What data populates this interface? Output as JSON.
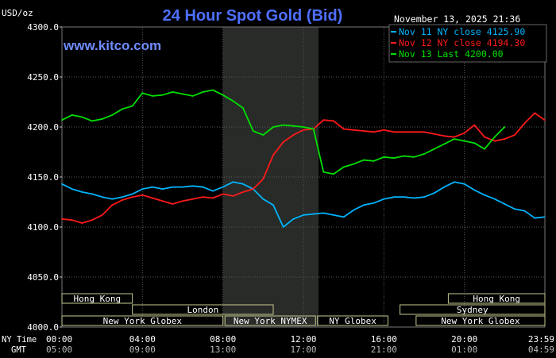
{
  "chart_data": {
    "type": "line",
    "title": "24 Hour Spot Gold (Bid)",
    "ylabel": "USD/oz",
    "watermark": "www.kitco.com",
    "timestamp": "November 13, 2025 21:36",
    "ylim": [
      4000,
      4300
    ],
    "yticks": [
      4300,
      4250,
      4200,
      4150,
      4100,
      4050,
      4000
    ],
    "ytick_labels": [
      "4300.0",
      "4250.0",
      "4200.0",
      "4150.0",
      "4100.0",
      "4050.0",
      "4000.0"
    ],
    "xlim": [
      0,
      24
    ],
    "xticks": [
      0,
      4,
      8,
      12,
      16,
      20,
      24
    ],
    "ny_time_label": "NY Time",
    "gmt_label": "GMT",
    "ny_tick_labels": [
      "00:00",
      "04:00",
      "08:00",
      "12:00",
      "16:00",
      "20:00",
      "23:59"
    ],
    "gmt_tick_labels": [
      "05:00",
      "09:00",
      "13:00",
      "17:00",
      "21:00",
      "01:00",
      "04:59"
    ],
    "shaded_region": [
      8,
      12.75
    ],
    "grid": true,
    "legend_placement": "top-right",
    "series": [
      {
        "name": "Nov 11 NY close 4125.90",
        "color": "#00b4ff",
        "x": [
          0,
          0.5,
          1,
          1.5,
          2,
          2.5,
          3,
          3.5,
          4,
          4.5,
          5,
          5.5,
          6,
          6.5,
          7,
          7.5,
          8,
          8.5,
          9,
          9.5,
          10,
          10.5,
          11,
          11.5,
          12,
          12.5,
          13,
          13.5,
          14,
          14.5,
          15,
          15.5,
          16,
          16.5,
          17,
          17.5,
          18,
          18.5,
          19,
          19.5,
          20,
          20.5,
          21,
          21.5,
          22,
          22.5,
          23,
          23.5,
          23.98
        ],
        "y": [
          4143,
          4138,
          4135,
          4133,
          4130,
          4128,
          4130,
          4133,
          4138,
          4140,
          4138,
          4140,
          4140,
          4141,
          4140,
          4136,
          4140,
          4145,
          4143,
          4138,
          4128,
          4122,
          4100,
          4108,
          4112,
          4113,
          4114,
          4112,
          4110,
          4117,
          4122,
          4124,
          4128,
          4130,
          4130,
          4129,
          4130,
          4134,
          4140,
          4145,
          4143,
          4137,
          4132,
          4128,
          4123,
          4118,
          4116,
          4109,
          4110
        ]
      },
      {
        "name": "Nov 12 NY close 4194.30",
        "color": "#ff1a1a",
        "x": [
          0,
          0.5,
          1,
          1.5,
          2,
          2.5,
          3,
          3.5,
          4,
          4.5,
          5,
          5.5,
          6,
          6.5,
          7,
          7.5,
          8,
          8.5,
          9,
          9.5,
          10,
          10.5,
          11,
          11.5,
          12,
          12.5,
          13,
          13.5,
          14,
          14.5,
          15,
          15.5,
          16,
          16.5,
          17,
          17.5,
          18,
          18.5,
          19,
          19.5,
          20,
          20.5,
          21,
          21.5,
          22,
          22.5,
          23,
          23.5,
          23.98
        ],
        "y": [
          4108,
          4107,
          4104,
          4107,
          4112,
          4122,
          4127,
          4130,
          4132,
          4129,
          4126,
          4123,
          4126,
          4128,
          4130,
          4129,
          4133,
          4131,
          4135,
          4138,
          4148,
          4172,
          4185,
          4192,
          4197,
          4198,
          4207,
          4206,
          4198,
          4197,
          4196,
          4195,
          4197,
          4195,
          4195,
          4195,
          4195,
          4193,
          4191,
          4190,
          4194,
          4202,
          4190,
          4186,
          4188,
          4192,
          4204,
          4214,
          4207
        ]
      },
      {
        "name": "Nov 13 Last 4200.00",
        "color": "#00e000",
        "x": [
          0,
          0.5,
          1,
          1.5,
          2,
          2.5,
          3,
          3.5,
          4,
          4.5,
          5,
          5.5,
          6,
          6.5,
          7,
          7.5,
          8,
          8.5,
          9,
          9.5,
          10,
          10.5,
          11,
          11.5,
          12,
          12.5,
          13,
          13.5,
          14,
          14.5,
          15,
          15.5,
          16,
          16.5,
          17,
          17.5,
          18,
          18.5,
          19,
          19.5,
          20,
          20.5,
          21,
          21.5,
          22
        ],
        "y": [
          4207,
          4212,
          4210,
          4206,
          4208,
          4212,
          4218,
          4221,
          4234,
          4231,
          4232,
          4235,
          4233,
          4231,
          4235,
          4237,
          4232,
          4226,
          4219,
          4196,
          4192,
          4200,
          4202,
          4201,
          4200,
          4198,
          4155,
          4153,
          4160,
          4163,
          4167,
          4166,
          4170,
          4169,
          4171,
          4170,
          4173,
          4178,
          4183,
          4188,
          4186,
          4184,
          4178,
          4190,
          4200
        ]
      }
    ]
  },
  "sessions": {
    "row1": [
      {
        "label": "Hong Kong",
        "start": 0,
        "end": 3.5
      },
      {
        "label": "Hong Kong",
        "start": 19.2,
        "end": 24
      }
    ],
    "row2": [
      {
        "label": "London",
        "start": 3.5,
        "end": 10.5
      },
      {
        "label": "Sydney",
        "start": 16.8,
        "end": 24
      }
    ],
    "row3": [
      {
        "label": "New York Globex",
        "start": 0,
        "end": 8
      },
      {
        "label": "New York NYMEX",
        "start": 8.1,
        "end": 12.6
      },
      {
        "label": "NY Globex",
        "start": 12.7,
        "end": 16.2
      },
      {
        "label": "New York Globex",
        "start": 17.6,
        "end": 24
      }
    ]
  },
  "colors": {
    "background": "#000000",
    "title": "#4f6fff",
    "watermark": "#6f8cff",
    "grid": "#5a5a5a",
    "shade": "#282b28",
    "session_text": "#ffffff",
    "session_border": "#c8c890",
    "text": "#ffffff"
  }
}
